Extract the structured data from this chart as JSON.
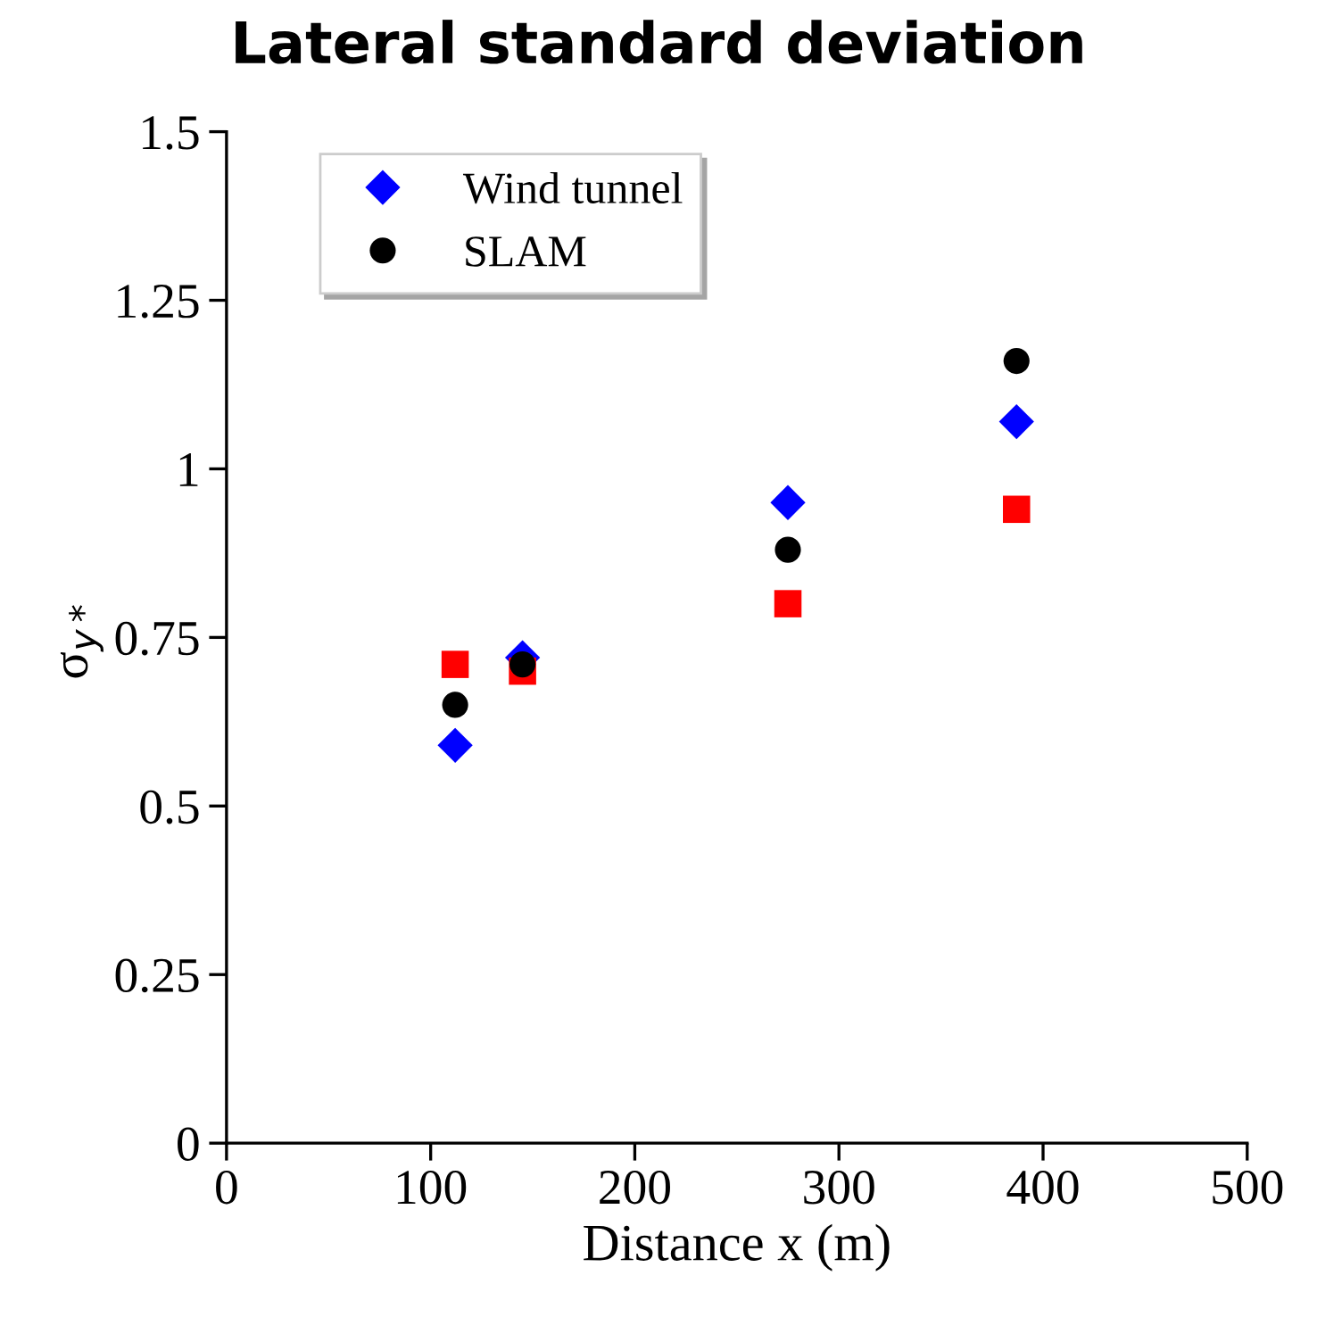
{
  "chart_data": {
    "type": "scatter",
    "title": "Lateral standard deviation",
    "xlabel": "Distance x (m)",
    "ylabel": "σ$_{y*}$",
    "x": [
      112,
      145,
      275,
      387
    ],
    "series": [
      {
        "name": "Wind tunnel",
        "color": "#0000ff",
        "marker": "diamond",
        "values": [
          0.59,
          0.72,
          0.95,
          1.07
        ]
      },
      {
        "color": "#ff0000",
        "marker": "square",
        "values": [
          0.71,
          0.7,
          0.8,
          0.94
        ]
      },
      {
        "name": "SLAM",
        "color": "#000000",
        "marker": "circle",
        "values": [
          0.65,
          0.71,
          0.88,
          1.16
        ]
      }
    ],
    "xlim": [
      0,
      500
    ],
    "xticks": [
      0,
      100,
      200,
      300,
      400,
      500
    ],
    "ylim": [
      0,
      1.5
    ],
    "yticks": [
      0,
      0.25,
      0.5,
      0.75,
      1,
      1.25,
      1.5
    ],
    "grid": false,
    "legend": "top left"
  }
}
